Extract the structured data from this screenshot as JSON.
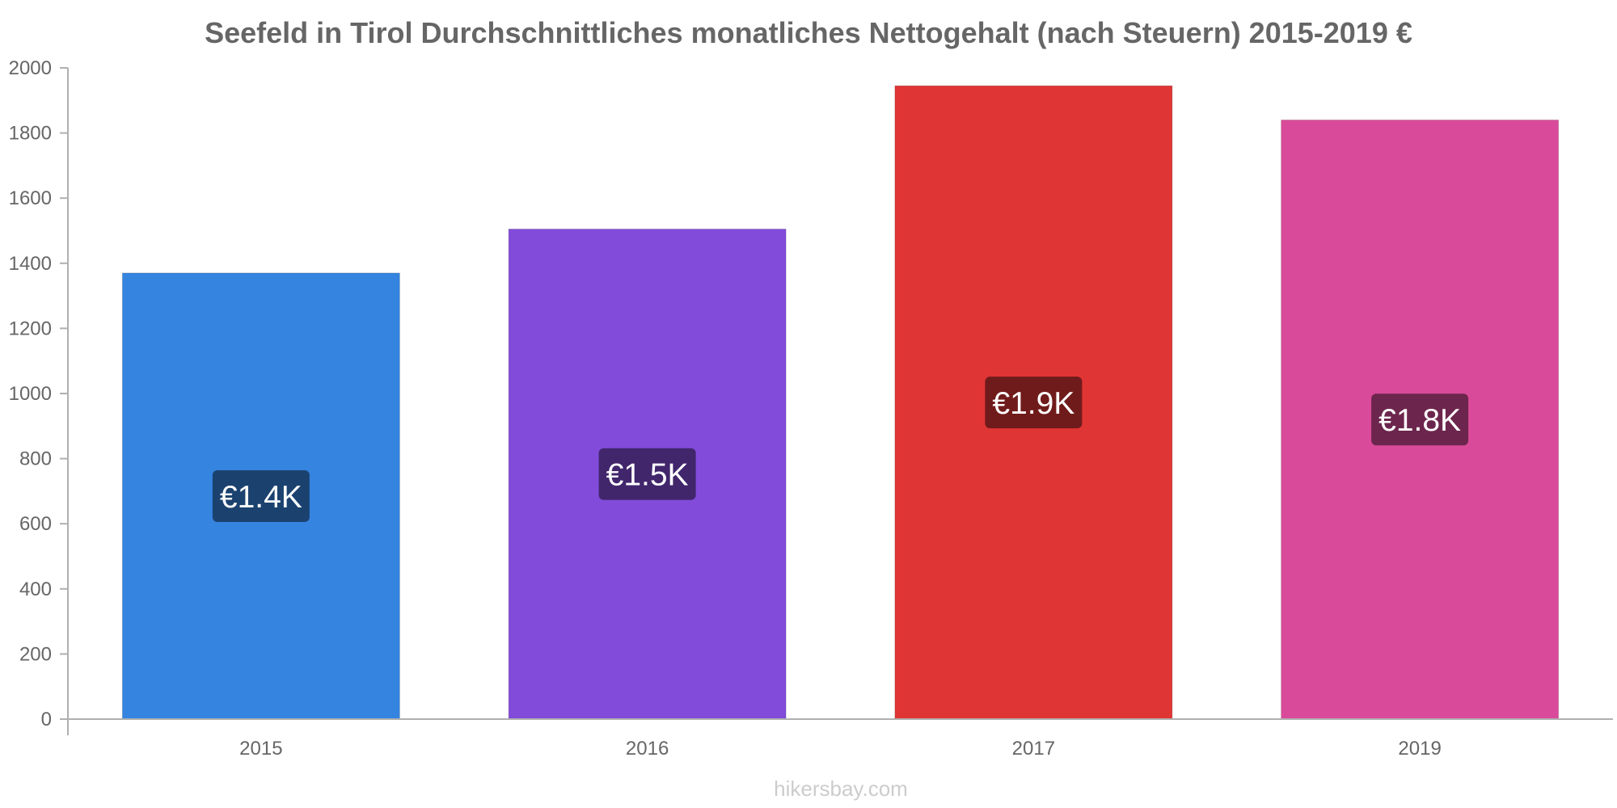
{
  "chart_data": {
    "type": "bar",
    "title": "Seefeld in Tirol Durchschnittliches monatliches Nettogehalt (nach Steuern) 2015-2019 €",
    "categories": [
      "2015",
      "2016",
      "2017",
      "2019"
    ],
    "values": [
      1370,
      1505,
      1945,
      1840
    ],
    "data_labels": [
      "€1.4K",
      "€1.5K",
      "€1.9K",
      "€1.8K"
    ],
    "colors": [
      "#3584e0",
      "#824bd9",
      "#e03535",
      "#d94b9a"
    ],
    "label_bg_colors": [
      "#1b426f",
      "#41266c",
      "#701b1b",
      "#6c264d"
    ],
    "ylim": [
      0,
      2000
    ],
    "yticks": [
      0,
      200,
      400,
      600,
      800,
      1000,
      1200,
      1400,
      1600,
      1800,
      2000
    ],
    "grid": false,
    "xlabel": "",
    "ylabel": ""
  },
  "watermark": "hikersbay.com"
}
